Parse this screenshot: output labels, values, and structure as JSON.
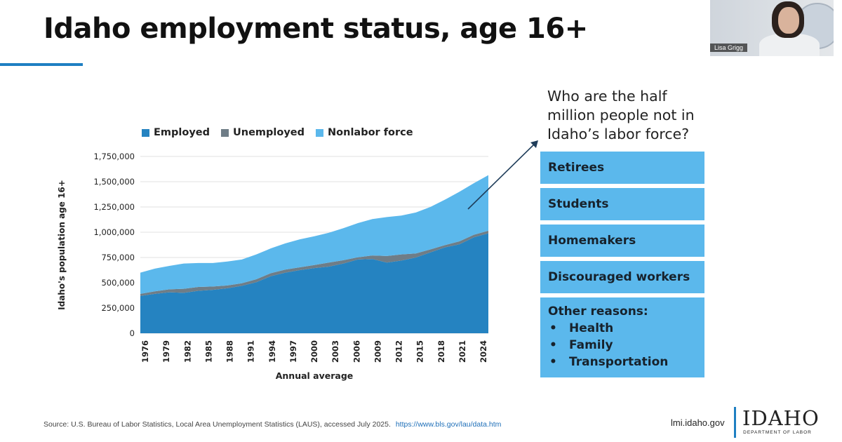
{
  "slide": {
    "title": "Idaho employment status, age 16+",
    "question": "Who are the half million people not in Idaho’s labor force?",
    "reasons": [
      "Retirees",
      "Students",
      "Homemakers",
      "Discouraged workers"
    ],
    "other_reasons": {
      "heading": "Other reasons:",
      "items": [
        "Health",
        "Family",
        "Transportation"
      ],
      "bullet": "•"
    },
    "source_text": "Source: U.S. Bureau of Labor Statistics, Local Area Unemployment Statistics (LAUS), accessed July 2025.",
    "source_url": "https://www.bls.gov/lau/data.htm",
    "site": "lmi.idaho.gov",
    "logo_word": "IDAHO",
    "logo_sub": "DEPARTMENT OF LABOR",
    "webcam_name": "Lisa Grigg"
  },
  "colors": {
    "employed": "#2583c1",
    "unemployed": "#6f7d87",
    "nonlabor": "#5bb8ec",
    "accent": "#1e7fc2",
    "reason_box": "#5bb8ec"
  },
  "chart_data": {
    "type": "area",
    "stacked": true,
    "ylabel": "Idaho's population age 16+",
    "xlabel": "Annual average",
    "ylim": [
      0,
      1750000
    ],
    "yticks": [
      0,
      250000,
      500000,
      750000,
      1000000,
      1250000,
      1500000,
      1750000
    ],
    "ytick_labels": [
      "0",
      "250,000",
      "500,000",
      "750,000",
      "1,000,000",
      "1,250,000",
      "1,500,000",
      "1,750,000"
    ],
    "xtick_labels": [
      "1976",
      "1979",
      "1982",
      "1985",
      "1988",
      "1991",
      "1994",
      "1997",
      "2000",
      "2003",
      "2006",
      "2009",
      "2012",
      "2015",
      "2018",
      "2021",
      "2024"
    ],
    "legend_position": "top-left",
    "grid": true,
    "x": [
      1976,
      1978,
      1980,
      1982,
      1984,
      1986,
      1988,
      1990,
      1992,
      1994,
      1996,
      1998,
      2000,
      2002,
      2004,
      2006,
      2008,
      2010,
      2012,
      2014,
      2016,
      2018,
      2020,
      2022,
      2024
    ],
    "series": [
      {
        "name": "Employed",
        "values": [
          370000,
          390000,
          405000,
          400000,
          420000,
          430000,
          445000,
          470000,
          505000,
          565000,
          600000,
          625000,
          645000,
          660000,
          690000,
          730000,
          735000,
          700000,
          720000,
          750000,
          800000,
          850000,
          880000,
          950000,
          990000
        ]
      },
      {
        "name": "Unemployed",
        "values": [
          20000,
          25000,
          30000,
          40000,
          38000,
          33000,
          28000,
          25000,
          30000,
          30000,
          30000,
          28000,
          30000,
          40000,
          33000,
          22000,
          35000,
          65000,
          60000,
          40000,
          30000,
          22000,
          30000,
          25000,
          25000
        ]
      },
      {
        "name": "Nonlabor force",
        "values": [
          210000,
          225000,
          232000,
          250000,
          237000,
          232000,
          237000,
          235000,
          245000,
          245000,
          260000,
          277000,
          285000,
          295000,
          317000,
          338000,
          360000,
          385000,
          385000,
          405000,
          420000,
          450000,
          490000,
          510000,
          550000
        ]
      }
    ]
  }
}
